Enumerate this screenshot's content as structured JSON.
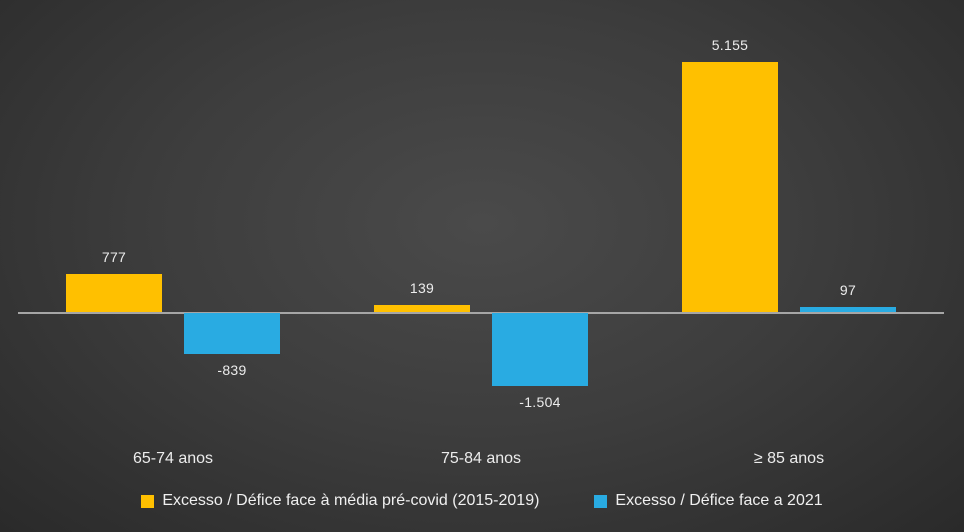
{
  "chart_data": {
    "type": "bar",
    "title": "",
    "categories": [
      "65-74 anos",
      "75-84 anos",
      "≥ 85 anos"
    ],
    "series": [
      {
        "name": "Excesso / Défice face à média pré-covid (2015-2019)",
        "color": "#FFC000",
        "values": [
          777,
          139,
          5155
        ],
        "labels": [
          "777",
          "139",
          "5.155"
        ]
      },
      {
        "name": "Excesso / Défice face a 2021",
        "color": "#29ABE2",
        "values": [
          -839,
          -1504,
          97
        ],
        "labels": [
          "-839",
          "-1.504",
          "97"
        ]
      }
    ],
    "xlabel": "",
    "ylabel": "",
    "ylim": [
      -1700,
      5500
    ],
    "grid": false,
    "legend_position": "bottom",
    "axis_line_color": "#a6a6a6",
    "background_color": "#3d3d3d",
    "text_color": "#ececec"
  }
}
